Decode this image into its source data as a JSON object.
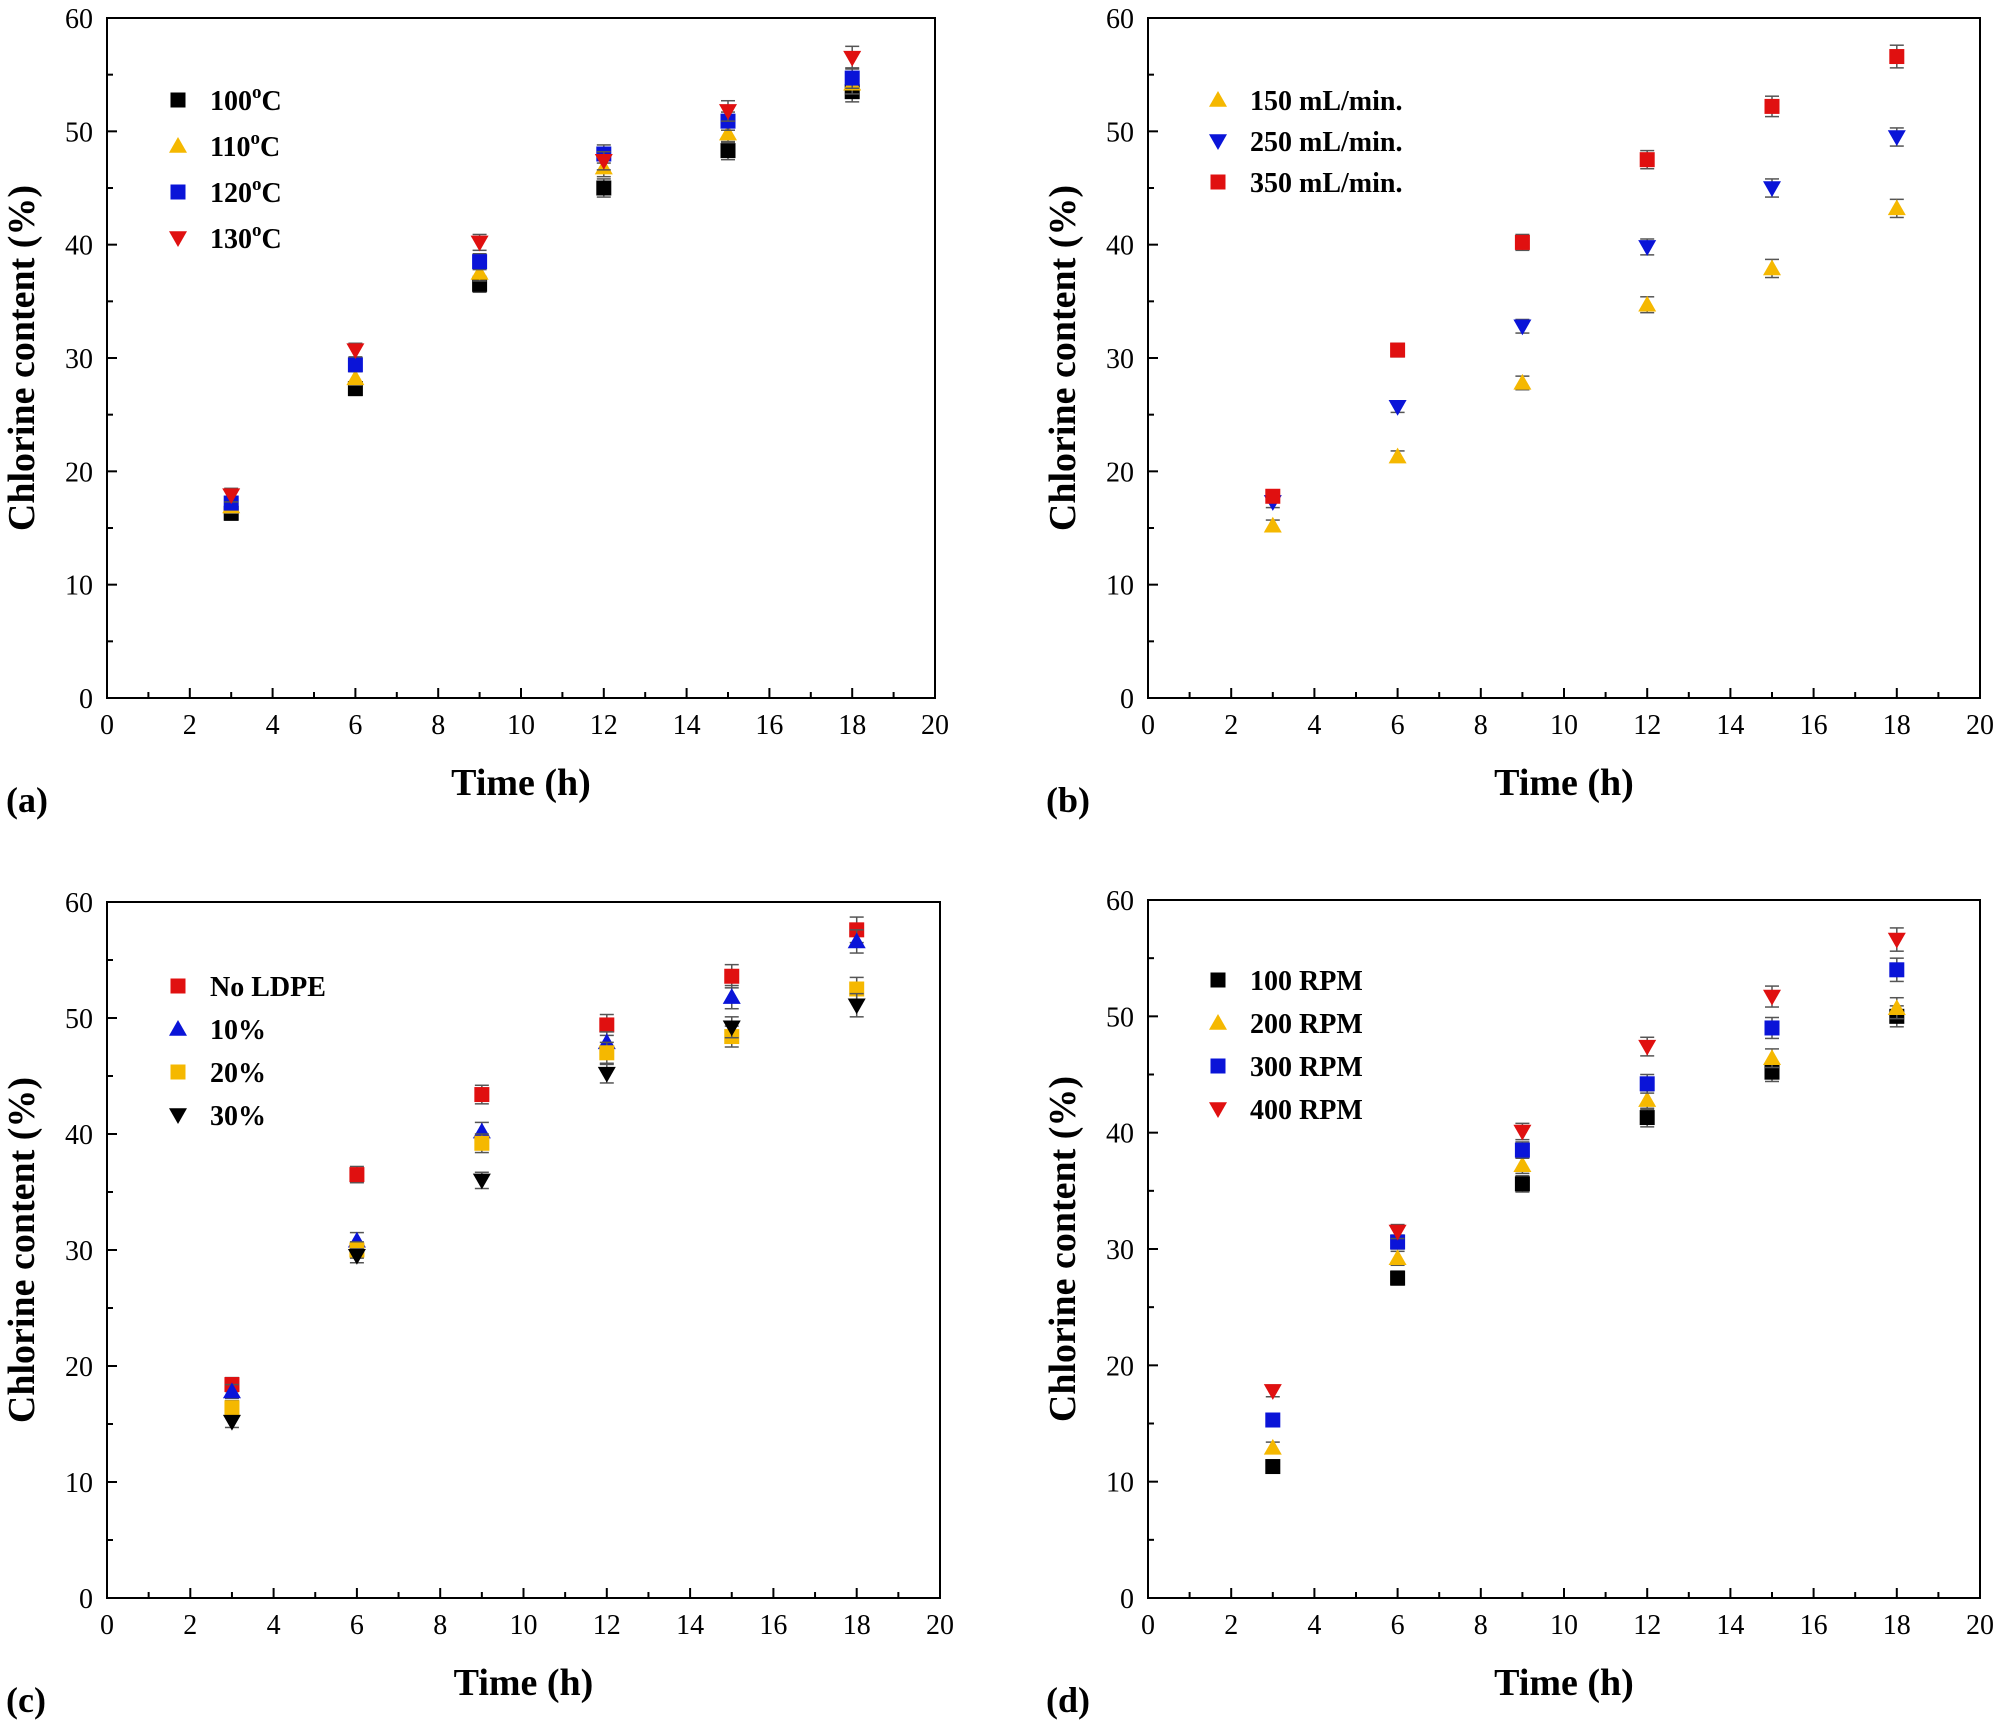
{
  "chart_data": [
    {
      "type": "scatter",
      "panel_label": "(a)",
      "xlabel": "Time (h)",
      "ylabel": "Chlorine content (%)",
      "xlim": [
        0,
        20
      ],
      "ylim": [
        0,
        60
      ],
      "x_ticks": [
        0,
        2,
        4,
        6,
        8,
        10,
        12,
        14,
        16,
        18,
        20
      ],
      "y_ticks": [
        0,
        10,
        20,
        30,
        40,
        50,
        60
      ],
      "legend_position": "top-left",
      "x": [
        3,
        6,
        9,
        12,
        15,
        18
      ],
      "series": [
        {
          "name": "100",
          "unit": "°C",
          "marker": "square",
          "color": "#000000",
          "values": [
            16.3,
            27.3,
            36.5,
            45.0,
            48.3,
            53.5
          ],
          "errors": [
            0.6,
            0.6,
            0.7,
            0.8,
            0.8,
            0.9
          ]
        },
        {
          "name": "110",
          "unit": "°C",
          "marker": "triangle-up",
          "color": "#f5b800",
          "values": [
            16.9,
            28.2,
            37.5,
            46.8,
            49.8,
            54.2
          ],
          "errors": [
            0.6,
            0.6,
            0.7,
            0.8,
            0.8,
            0.9
          ]
        },
        {
          "name": "120",
          "unit": "°C",
          "marker": "square",
          "color": "#0a14d8",
          "values": [
            17.2,
            29.4,
            38.5,
            48.0,
            50.9,
            54.7
          ],
          "errors": [
            0.6,
            0.6,
            0.7,
            0.8,
            0.8,
            0.9
          ]
        },
        {
          "name": "130",
          "unit": "°C",
          "marker": "triangle-down",
          "color": "#e01010",
          "values": [
            17.9,
            30.7,
            40.2,
            47.4,
            51.8,
            56.5
          ],
          "errors": [
            0.6,
            0.6,
            0.7,
            0.8,
            0.9,
            1.0
          ]
        }
      ]
    },
    {
      "type": "scatter",
      "panel_label": "(b)",
      "xlabel": "Time (h)",
      "ylabel": "Chlorine content (%)",
      "xlim": [
        0,
        20
      ],
      "ylim": [
        0,
        60
      ],
      "x_ticks": [
        0,
        2,
        4,
        6,
        8,
        10,
        12,
        14,
        16,
        18,
        20
      ],
      "y_ticks": [
        0,
        10,
        20,
        30,
        40,
        50,
        60
      ],
      "legend_position": "top-left",
      "x": [
        3,
        6,
        9,
        12,
        15,
        18
      ],
      "series": [
        {
          "name": "150 mL/min.",
          "marker": "triangle-up",
          "color": "#f5b800",
          "values": [
            15.2,
            21.3,
            27.8,
            34.7,
            37.9,
            43.2
          ],
          "errors": [
            0.5,
            0.5,
            0.6,
            0.7,
            0.8,
            0.8
          ]
        },
        {
          "name": "250 mL/min.",
          "marker": "triangle-down",
          "color": "#0a14d8",
          "values": [
            17.3,
            25.7,
            32.8,
            39.8,
            45.0,
            49.5
          ],
          "errors": [
            0.5,
            0.5,
            0.6,
            0.7,
            0.8,
            0.8
          ]
        },
        {
          "name": "350 mL/min.",
          "marker": "square",
          "color": "#e01010",
          "values": [
            17.8,
            30.7,
            40.2,
            47.5,
            52.2,
            56.6
          ],
          "errors": [
            0.5,
            0.6,
            0.7,
            0.8,
            0.9,
            1.0
          ]
        }
      ]
    },
    {
      "type": "scatter",
      "panel_label": "(c)",
      "xlabel": "Time (h)",
      "ylabel": "Chlorine content (%)",
      "xlim": [
        0,
        20
      ],
      "ylim": [
        0,
        60
      ],
      "x_ticks": [
        0,
        2,
        4,
        6,
        8,
        10,
        12,
        14,
        16,
        18,
        20
      ],
      "y_ticks": [
        0,
        10,
        20,
        30,
        40,
        50,
        60
      ],
      "legend_position": "top-left",
      "x": [
        3,
        6,
        9,
        12,
        15,
        18
      ],
      "series": [
        {
          "name": "No LDPE",
          "marker": "square",
          "color": "#e01010",
          "values": [
            18.4,
            36.5,
            43.4,
            49.4,
            53.6,
            57.6
          ],
          "errors": [
            0.6,
            0.7,
            0.8,
            0.9,
            1.0,
            1.1
          ]
        },
        {
          "name": "10%",
          "marker": "triangle-up",
          "color": "#0a14d8",
          "values": [
            17.8,
            30.8,
            40.2,
            47.9,
            51.8,
            56.6
          ],
          "errors": [
            0.6,
            0.7,
            0.8,
            0.9,
            1.0,
            1.0
          ]
        },
        {
          "name": "20%",
          "marker": "square",
          "color": "#f5b800",
          "values": [
            16.4,
            30.0,
            39.2,
            47.0,
            48.4,
            52.5
          ],
          "errors": [
            0.6,
            0.7,
            0.8,
            0.9,
            0.9,
            1.0
          ]
        },
        {
          "name": "30%",
          "marker": "triangle-down",
          "color": "#000000",
          "values": [
            15.2,
            29.5,
            36.0,
            45.2,
            49.2,
            51.1
          ],
          "errors": [
            0.5,
            0.6,
            0.7,
            0.8,
            0.9,
            1.0
          ]
        }
      ]
    },
    {
      "type": "scatter",
      "panel_label": "(d)",
      "xlabel": "Time (h)",
      "ylabel": "Chlorine content (%)",
      "xlim": [
        0,
        20
      ],
      "ylim": [
        0,
        60
      ],
      "x_ticks": [
        0,
        2,
        4,
        6,
        8,
        10,
        12,
        14,
        16,
        18,
        20
      ],
      "y_ticks": [
        0,
        10,
        20,
        30,
        40,
        50,
        60
      ],
      "legend_position": "top-left",
      "x": [
        3,
        6,
        9,
        12,
        15,
        18
      ],
      "series": [
        {
          "name": "100 RPM",
          "marker": "square",
          "color": "#000000",
          "values": [
            11.3,
            27.5,
            35.6,
            41.3,
            45.2,
            50.0
          ],
          "errors": [
            0.5,
            0.6,
            0.7,
            0.8,
            0.8,
            0.9
          ]
        },
        {
          "name": "200 RPM",
          "marker": "triangle-up",
          "color": "#f5b800",
          "values": [
            12.9,
            29.2,
            37.2,
            42.8,
            46.4,
            50.7
          ],
          "errors": [
            0.5,
            0.6,
            0.7,
            0.8,
            0.8,
            0.9
          ]
        },
        {
          "name": "300 RPM",
          "marker": "square",
          "color": "#0a14d8",
          "values": [
            15.3,
            30.6,
            38.5,
            44.2,
            49.0,
            54.0
          ],
          "errors": [
            0.5,
            0.6,
            0.7,
            0.8,
            0.9,
            1.0
          ]
        },
        {
          "name": "400 RPM",
          "marker": "triangle-down",
          "color": "#e01010",
          "values": [
            17.8,
            31.5,
            40.1,
            47.4,
            51.7,
            56.6
          ],
          "errors": [
            0.5,
            0.6,
            0.7,
            0.8,
            0.9,
            1.0
          ]
        }
      ]
    }
  ]
}
